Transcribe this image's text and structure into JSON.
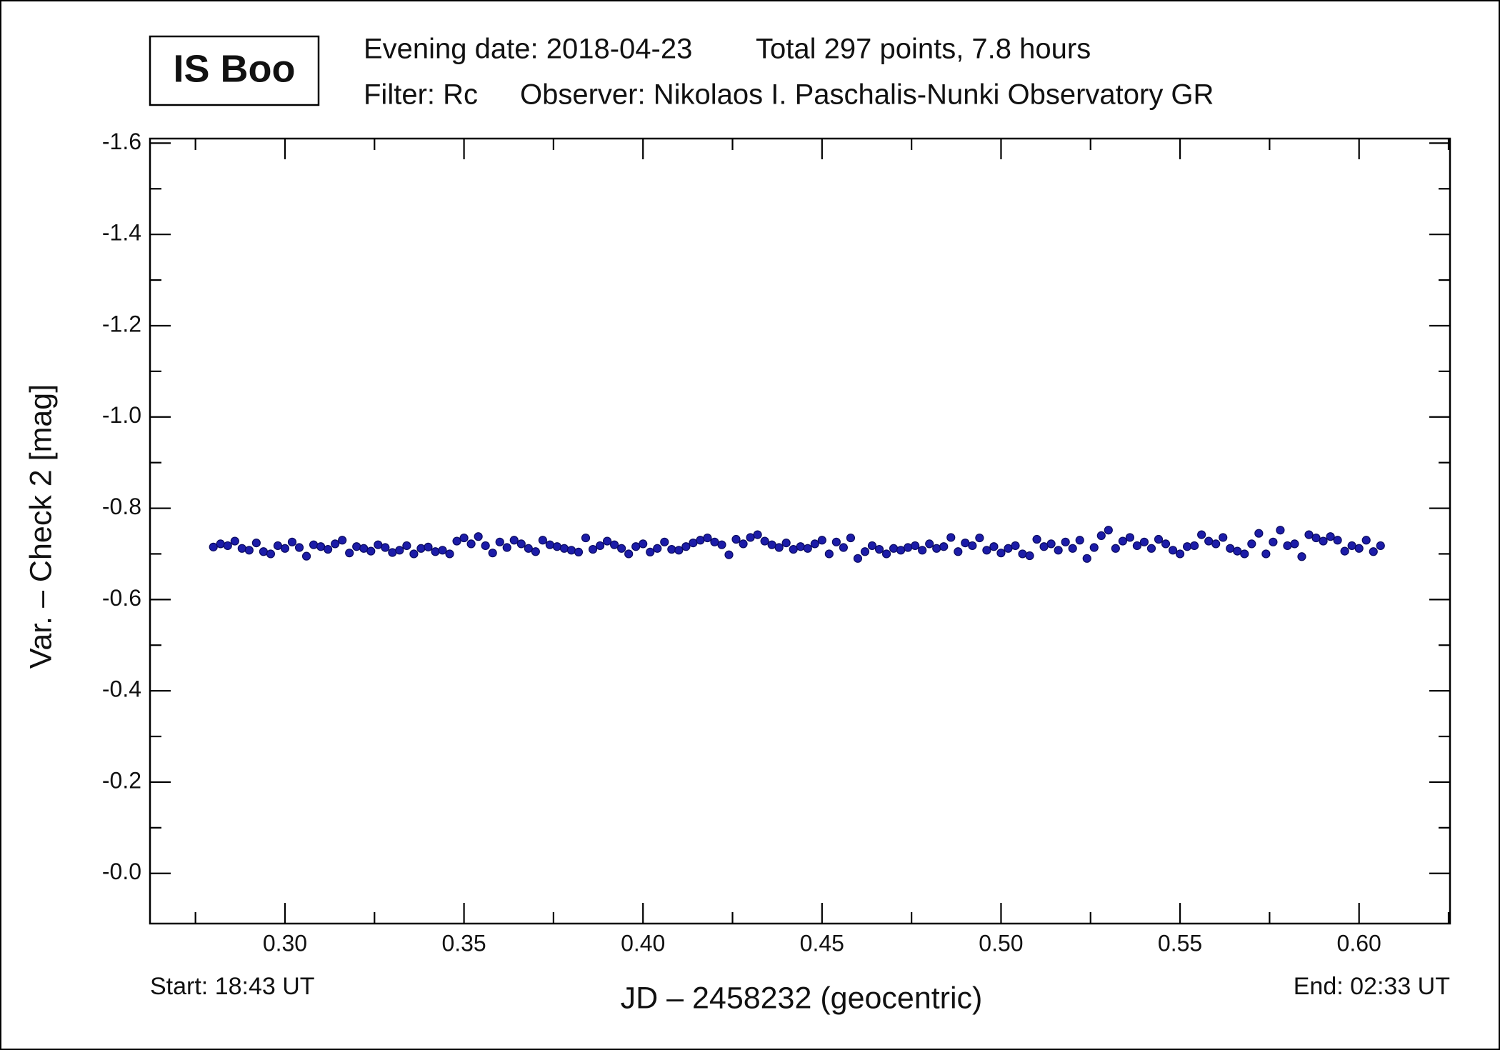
{
  "chart_data": {
    "type": "scatter",
    "title": "IS Boo",
    "annotations": {
      "evening_date": "Evening date: 2018-04-23",
      "total": "Total 297 points, 7.8 hours",
      "filter": "Filter: Rc",
      "observer": "Observer: Nikolaos I. Paschalis-Nunki Observatory GR",
      "start": "Start: 18:43 UT",
      "end": "End: 02:33 UT"
    },
    "x_label": "JD – 2458232  (geocentric)",
    "y_label": "Var. – Check 2 [mag]",
    "color": "#1c1ca8",
    "xlim": [
      0.2623,
      0.6254
    ],
    "ylim": [
      0.11,
      -1.61
    ],
    "xticks": [
      {
        "value": 0.3,
        "label": "0.30"
      },
      {
        "value": 0.35,
        "label": "0.35"
      },
      {
        "value": 0.4,
        "label": "0.40"
      },
      {
        "value": 0.45,
        "label": "0.45"
      },
      {
        "value": 0.5,
        "label": "0.50"
      },
      {
        "value": 0.55,
        "label": "0.55"
      },
      {
        "value": 0.6,
        "label": "0.60"
      }
    ],
    "yticks": [
      {
        "value": 0,
        "label": "-0.0"
      },
      -0.2,
      -0.4,
      -0.6,
      -0.8,
      {
        "value": -1,
        "label": "-1.0"
      },
      -1.2,
      -1.4,
      -1.6
    ],
    "x": [
      0.28,
      0.282,
      0.284,
      0.286,
      0.288,
      0.29,
      0.292,
      0.294,
      0.296,
      0.298,
      0.3,
      0.302,
      0.304,
      0.306,
      0.308,
      0.31,
      0.312,
      0.314,
      0.316,
      0.318,
      0.32,
      0.322,
      0.324,
      0.326,
      0.328,
      0.33,
      0.332,
      0.334,
      0.336,
      0.338,
      0.34,
      0.342,
      0.344,
      0.346,
      0.348,
      0.35,
      0.352,
      0.354,
      0.356,
      0.358,
      0.36,
      0.362,
      0.364,
      0.366,
      0.368,
      0.37,
      0.372,
      0.374,
      0.376,
      0.378,
      0.38,
      0.382,
      0.384,
      0.386,
      0.388,
      0.39,
      0.392,
      0.394,
      0.396,
      0.398,
      0.4,
      0.402,
      0.404,
      0.406,
      0.408,
      0.41,
      0.412,
      0.414,
      0.416,
      0.418,
      0.42,
      0.422,
      0.424,
      0.426,
      0.428,
      0.43,
      0.432,
      0.434,
      0.436,
      0.438,
      0.44,
      0.442,
      0.444,
      0.446,
      0.448,
      0.45,
      0.452,
      0.454,
      0.456,
      0.458,
      0.46,
      0.462,
      0.464,
      0.466,
      0.468,
      0.47,
      0.472,
      0.474,
      0.476,
      0.478,
      0.48,
      0.482,
      0.484,
      0.486,
      0.488,
      0.49,
      0.492,
      0.494,
      0.496,
      0.498,
      0.5,
      0.502,
      0.504,
      0.506,
      0.508,
      0.51,
      0.512,
      0.514,
      0.516,
      0.518,
      0.52,
      0.522,
      0.524,
      0.526,
      0.528,
      0.53,
      0.532,
      0.534,
      0.536,
      0.538,
      0.54,
      0.542,
      0.544,
      0.546,
      0.548,
      0.55,
      0.552,
      0.554,
      0.556,
      0.558,
      0.56,
      0.562,
      0.564,
      0.566,
      0.568,
      0.57,
      0.572,
      0.574,
      0.576,
      0.578,
      0.58,
      0.582,
      0.584,
      0.586,
      0.588,
      0.59,
      0.592,
      0.594,
      0.596,
      0.598,
      0.6,
      0.602,
      0.604,
      0.606
    ],
    "values": [
      -0.715,
      -0.722,
      -0.718,
      -0.728,
      -0.712,
      -0.708,
      -0.724,
      -0.705,
      -0.7,
      -0.718,
      -0.712,
      -0.726,
      -0.714,
      -0.695,
      -0.72,
      -0.716,
      -0.71,
      -0.722,
      -0.73,
      -0.702,
      -0.716,
      -0.712,
      -0.706,
      -0.72,
      -0.714,
      -0.703,
      -0.708,
      -0.718,
      -0.7,
      -0.712,
      -0.715,
      -0.705,
      -0.708,
      -0.7,
      -0.728,
      -0.735,
      -0.722,
      -0.738,
      -0.718,
      -0.702,
      -0.726,
      -0.714,
      -0.73,
      -0.722,
      -0.712,
      -0.705,
      -0.73,
      -0.72,
      -0.716,
      -0.712,
      -0.708,
      -0.704,
      -0.735,
      -0.71,
      -0.718,
      -0.728,
      -0.72,
      -0.712,
      -0.7,
      -0.716,
      -0.722,
      -0.704,
      -0.712,
      -0.726,
      -0.71,
      -0.708,
      -0.716,
      -0.724,
      -0.73,
      -0.735,
      -0.726,
      -0.72,
      -0.698,
      -0.732,
      -0.722,
      -0.736,
      -0.742,
      -0.728,
      -0.72,
      -0.714,
      -0.724,
      -0.71,
      -0.716,
      -0.712,
      -0.722,
      -0.73,
      -0.7,
      -0.726,
      -0.714,
      -0.735,
      -0.69,
      -0.705,
      -0.718,
      -0.71,
      -0.7,
      -0.712,
      -0.708,
      -0.714,
      -0.718,
      -0.708,
      -0.722,
      -0.712,
      -0.716,
      -0.736,
      -0.705,
      -0.724,
      -0.718,
      -0.735,
      -0.708,
      -0.716,
      -0.702,
      -0.712,
      -0.718,
      -0.7,
      -0.696,
      -0.732,
      -0.716,
      -0.722,
      -0.708,
      -0.726,
      -0.712,
      -0.73,
      -0.69,
      -0.714,
      -0.74,
      -0.752,
      -0.712,
      -0.728,
      -0.736,
      -0.718,
      -0.726,
      -0.712,
      -0.732,
      -0.722,
      -0.708,
      -0.7,
      -0.716,
      -0.718,
      -0.742,
      -0.728,
      -0.722,
      -0.736,
      -0.712,
      -0.706,
      -0.7,
      -0.722,
      -0.745,
      -0.7,
      -0.726,
      -0.752,
      -0.718,
      -0.722,
      -0.694,
      -0.742,
      -0.735,
      -0.728,
      -0.738,
      -0.73,
      -0.706,
      -0.718,
      -0.712,
      -0.73,
      -0.705,
      -0.718
    ]
  }
}
